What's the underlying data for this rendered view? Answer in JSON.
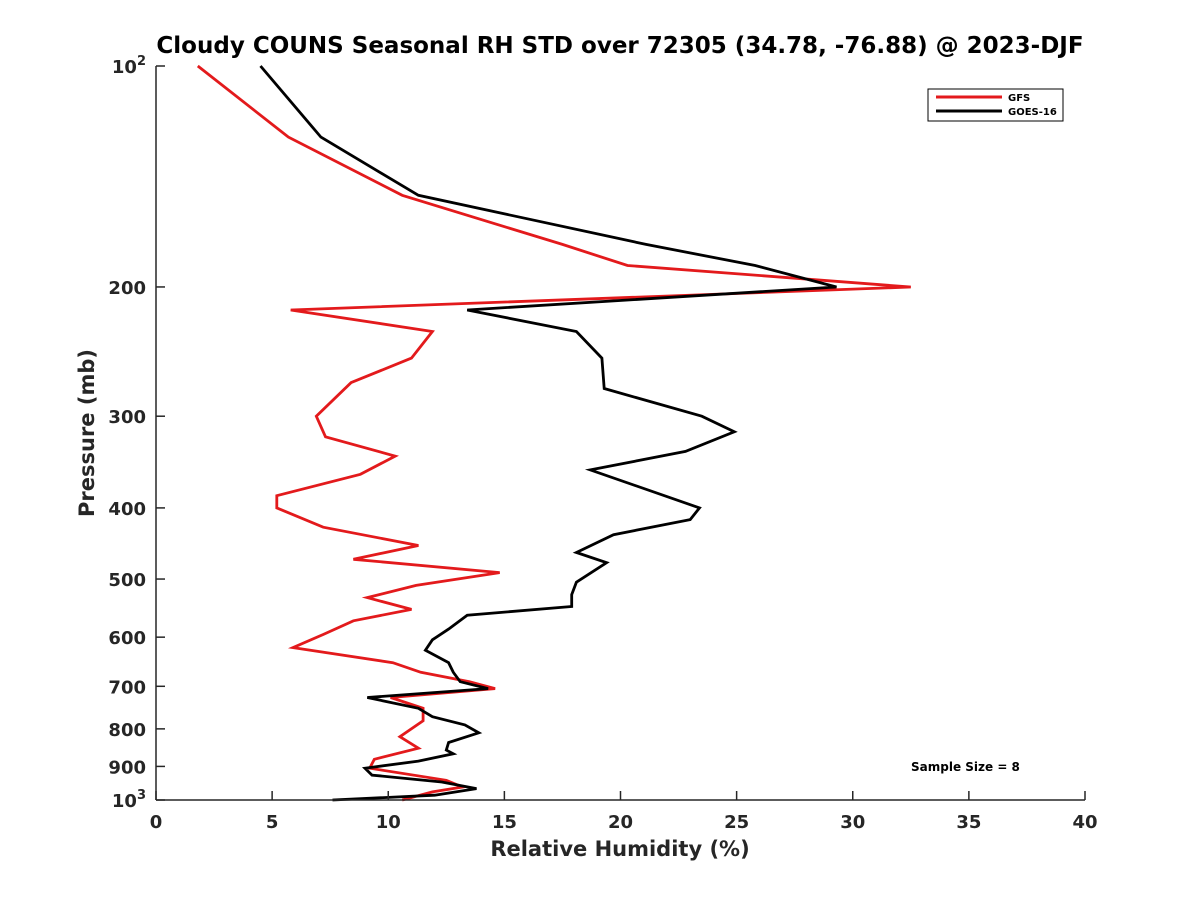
{
  "chart_data": {
    "type": "line",
    "title": "Cloudy COUNS Seasonal RH STD over 72305 (34.78, -76.88) @ 2023-DJF",
    "xlabel": "Relative Humidity (%)",
    "ylabel": "Pressure (mb)",
    "xlim": [
      0,
      40
    ],
    "ylim": [
      100,
      1000
    ],
    "y_scale": "log",
    "y_reversed": true,
    "x_ticks": [
      0,
      5,
      10,
      15,
      20,
      25,
      30,
      35,
      40
    ],
    "y_ticks": [
      {
        "value": 100,
        "base": "10",
        "exp": "2"
      },
      {
        "value": 200,
        "label": "200"
      },
      {
        "value": 300,
        "label": "300"
      },
      {
        "value": 400,
        "label": "400"
      },
      {
        "value": 500,
        "label": "500"
      },
      {
        "value": 600,
        "label": "600"
      },
      {
        "value": 700,
        "label": "700"
      },
      {
        "value": 800,
        "label": "800"
      },
      {
        "value": 900,
        "label": "900"
      },
      {
        "value": 1000,
        "base": "10",
        "exp": "3"
      }
    ],
    "legend_position": "top-right",
    "annotation": "Sample Size = 8",
    "series": [
      {
        "name": "GFS",
        "color": "#e31a1c",
        "points": [
          [
            1.8,
            100
          ],
          [
            5.7,
            125
          ],
          [
            10.6,
            150
          ],
          [
            17.5,
            175
          ],
          [
            20.3,
            187
          ],
          [
            32.5,
            200
          ],
          [
            5.8,
            215
          ],
          [
            11.9,
            230
          ],
          [
            11.0,
            250
          ],
          [
            8.4,
            270
          ],
          [
            6.9,
            300
          ],
          [
            7.3,
            320
          ],
          [
            10.3,
            340
          ],
          [
            8.8,
            360
          ],
          [
            5.2,
            385
          ],
          [
            5.2,
            400
          ],
          [
            7.2,
            425
          ],
          [
            11.3,
            450
          ],
          [
            8.5,
            470
          ],
          [
            14.8,
            490
          ],
          [
            11.2,
            510
          ],
          [
            9.1,
            530
          ],
          [
            11.0,
            550
          ],
          [
            8.5,
            570
          ],
          [
            7.2,
            595
          ],
          [
            5.9,
            620
          ],
          [
            10.2,
            650
          ],
          [
            11.4,
            670
          ],
          [
            13.5,
            690
          ],
          [
            14.6,
            705
          ],
          [
            10.1,
            725
          ],
          [
            11.5,
            750
          ],
          [
            11.5,
            780
          ],
          [
            10.5,
            820
          ],
          [
            11.3,
            850
          ],
          [
            9.4,
            880
          ],
          [
            9.2,
            905
          ],
          [
            12.5,
            940
          ],
          [
            13.2,
            960
          ],
          [
            11.9,
            975
          ],
          [
            10.6,
            1000
          ]
        ]
      },
      {
        "name": "GOES-16",
        "color": "#000000",
        "points": [
          [
            4.5,
            100
          ],
          [
            7.1,
            125
          ],
          [
            11.3,
            150
          ],
          [
            21.1,
            175
          ],
          [
            25.8,
            187
          ],
          [
            29.3,
            200
          ],
          [
            13.4,
            215
          ],
          [
            18.1,
            230
          ],
          [
            19.2,
            250
          ],
          [
            19.3,
            275
          ],
          [
            23.5,
            300
          ],
          [
            24.9,
            315
          ],
          [
            22.8,
            335
          ],
          [
            18.7,
            355
          ],
          [
            23.4,
            400
          ],
          [
            23.0,
            415
          ],
          [
            19.7,
            435
          ],
          [
            18.1,
            460
          ],
          [
            19.4,
            475
          ],
          [
            18.1,
            505
          ],
          [
            17.9,
            525
          ],
          [
            17.9,
            545
          ],
          [
            13.4,
            560
          ],
          [
            12.6,
            585
          ],
          [
            11.9,
            605
          ],
          [
            11.6,
            625
          ],
          [
            12.6,
            650
          ],
          [
            12.8,
            670
          ],
          [
            13.1,
            690
          ],
          [
            14.3,
            705
          ],
          [
            9.1,
            725
          ],
          [
            11.3,
            750
          ],
          [
            11.9,
            770
          ],
          [
            13.3,
            790
          ],
          [
            13.9,
            810
          ],
          [
            12.6,
            835
          ],
          [
            12.5,
            855
          ],
          [
            12.8,
            865
          ],
          [
            11.3,
            885
          ],
          [
            9.0,
            905
          ],
          [
            9.3,
            925
          ],
          [
            12.3,
            945
          ],
          [
            13.8,
            965
          ],
          [
            12.0,
            985
          ],
          [
            7.6,
            1000
          ]
        ]
      }
    ]
  }
}
